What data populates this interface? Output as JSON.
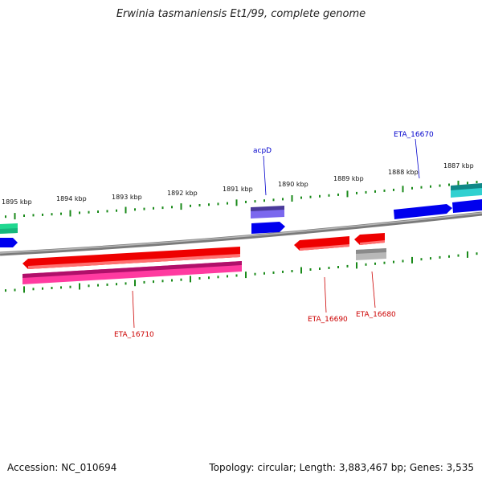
{
  "title": "Erwinia tasmaniensis Et1/99, complete genome",
  "footer": {
    "accession": "Accession: NC_010694",
    "summary": "Topology: circular; Length: 3,883,467 bp; Genes: 3,535"
  },
  "ticks_kbp": [
    "1895 kbp",
    "1894 kbp",
    "1893 kbp",
    "1892 kbp",
    "1891 kbp",
    "1890 kbp",
    "1889 kbp",
    "1888 kbp",
    "1887 kbp"
  ],
  "gene_labels": {
    "acpD": "acpD",
    "ETA_16670": "ETA_16670",
    "ETA_16710": "ETA_16710",
    "ETA_16690": "ETA_16690",
    "ETA_16680": "ETA_16680"
  },
  "colors": {
    "backbone": "#808080",
    "tick": "#1a8a1a",
    "forward_cds": "#0000ee",
    "reverse_cds": "#ee0000",
    "pink_feature": "#e0207a",
    "purple_feature": "#6a5acd",
    "cyan_feature": "#20c0c0",
    "green_feature": "#20d890",
    "gray_feature": "#a8a8a8",
    "label_blue": "#0000cc",
    "label_red": "#cc0000"
  }
}
